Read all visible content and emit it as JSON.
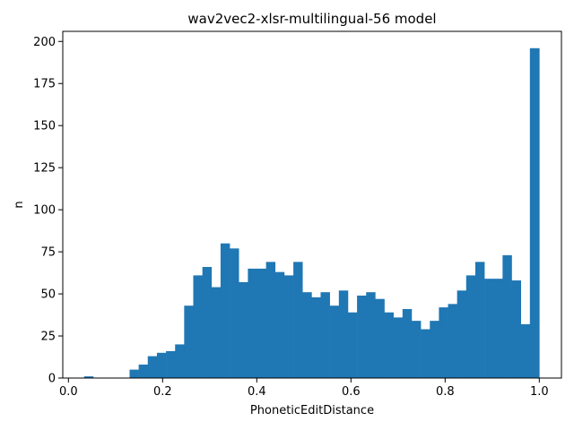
{
  "chart_data": {
    "type": "bar",
    "title": "wav2vec2-xlsr-multilingual-56 model",
    "xlabel": "PhoneticEditDistance",
    "ylabel": "n",
    "xlim": [
      -0.012,
      1.047
    ],
    "ylim": [
      0,
      206
    ],
    "xticks": [
      0.0,
      0.2,
      0.4,
      0.6,
      0.8,
      1.0
    ],
    "xtick_labels": [
      "0.0",
      "0.2",
      "0.4",
      "0.6",
      "0.8",
      "1.0"
    ],
    "yticks": [
      0,
      25,
      50,
      75,
      100,
      125,
      150,
      175,
      200
    ],
    "ytick_labels": [
      "0",
      "25",
      "50",
      "75",
      "100",
      "125",
      "150",
      "175",
      "200"
    ],
    "bin_edges": [
      0.0333,
      0.0526,
      0.0719,
      0.0913,
      0.1106,
      0.1299,
      0.1492,
      0.1685,
      0.1879,
      0.2072,
      0.2265,
      0.2458,
      0.2651,
      0.2845,
      0.3038,
      0.3231,
      0.3424,
      0.3617,
      0.3811,
      0.4004,
      0.4197,
      0.439,
      0.4583,
      0.4777,
      0.497,
      0.5163,
      0.5356,
      0.5549,
      0.5743,
      0.5936,
      0.6129,
      0.6322,
      0.6515,
      0.6709,
      0.6902,
      0.7095,
      0.7288,
      0.7481,
      0.7675,
      0.7868,
      0.8061,
      0.8254,
      0.8447,
      0.8641,
      0.8834,
      0.9027,
      0.922,
      0.9413,
      0.9607,
      0.98,
      1.0
    ],
    "counts": [
      1,
      0,
      0,
      0,
      0,
      5,
      8,
      13,
      15,
      16,
      20,
      43,
      61,
      66,
      54,
      80,
      77,
      57,
      65,
      65,
      69,
      63,
      61,
      69,
      51,
      48,
      51,
      43,
      52,
      39,
      49,
      51,
      47,
      39,
      36,
      41,
      34,
      29,
      34,
      42,
      44,
      52,
      61,
      69,
      59,
      59,
      73,
      58,
      32,
      196
    ],
    "bar_color": "#1f77b4",
    "grid": false,
    "legend": "none"
  }
}
